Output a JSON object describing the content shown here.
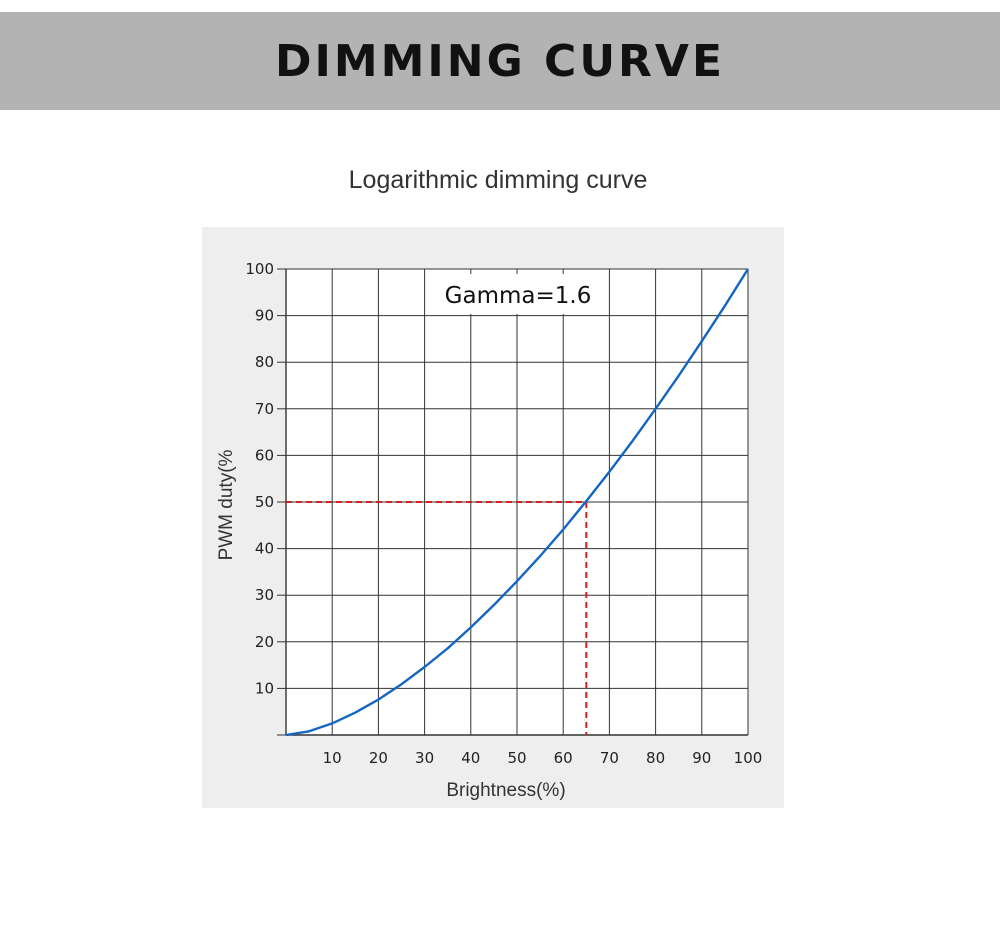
{
  "header": {
    "title": "DIMMING CURVE"
  },
  "colors": {
    "banner": "#b3b3b3",
    "curve": "#1566c0",
    "guide": "#d42020",
    "grid": "#333333",
    "panel": "#eeeeee"
  },
  "chart_data": {
    "type": "line",
    "title": "Logarithmic dimming curve",
    "xlabel": "Brightness(%)",
    "ylabel": "PWM duty(%",
    "xlim": [
      0,
      100
    ],
    "ylim": [
      0,
      100
    ],
    "x_ticks": [
      10,
      20,
      30,
      40,
      50,
      60,
      70,
      80,
      90,
      100
    ],
    "y_ticks": [
      10,
      20,
      30,
      40,
      50,
      60,
      70,
      80,
      90,
      100
    ],
    "grid": true,
    "annotation": "Gamma=1.6",
    "series": [
      {
        "gamma": 1.6,
        "x": [
          0,
          5,
          10,
          15,
          20,
          25,
          30,
          35,
          40,
          45,
          50,
          55,
          60,
          65,
          70,
          75,
          80,
          85,
          90,
          95,
          100
        ],
        "y": [
          0,
          0.8,
          2.5,
          4.8,
          7.6,
          10.9,
          14.6,
          18.6,
          23.1,
          27.9,
          33.0,
          38.4,
          44.1,
          50.2,
          56.5,
          63.1,
          70.0,
          77.1,
          84.5,
          92.1,
          100
        ]
      }
    ],
    "guide": {
      "x": 65,
      "y": 50
    }
  }
}
